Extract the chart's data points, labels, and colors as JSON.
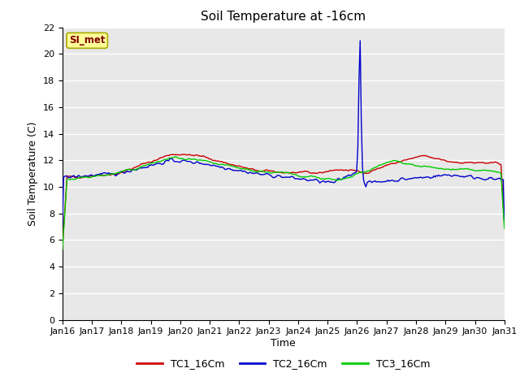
{
  "title": "Soil Temperature at -16cm",
  "xlabel": "Time",
  "ylabel": "Soil Temperature (C)",
  "ylim": [
    0,
    22
  ],
  "yticks": [
    0,
    2,
    4,
    6,
    8,
    10,
    12,
    14,
    16,
    18,
    20,
    22
  ],
  "x_labels": [
    "Jan 16",
    "Jan 17",
    "Jan 18",
    "Jan 19",
    "Jan 20",
    "Jan 21",
    "Jan 22",
    "Jan 23",
    "Jan 24",
    "Jan 25",
    "Jan 26",
    "Jan 27",
    "Jan 28",
    "Jan 29",
    "Jan 30",
    "Jan 31"
  ],
  "annotation_text": "SI_met",
  "annotation_box_color": "#ffff99",
  "annotation_text_color": "#800000",
  "background_color": "#e8e8e8",
  "plot_bg_color": "#e8e8e8",
  "grid_color": "#ffffff",
  "colors": {
    "TC1_16Cm": "#cc0000",
    "TC2_16Cm": "#0000cc",
    "TC3_16Cm": "#00cc00"
  },
  "legend_labels": [
    "TC1_16Cm",
    "TC2_16Cm",
    "TC3_16Cm"
  ]
}
